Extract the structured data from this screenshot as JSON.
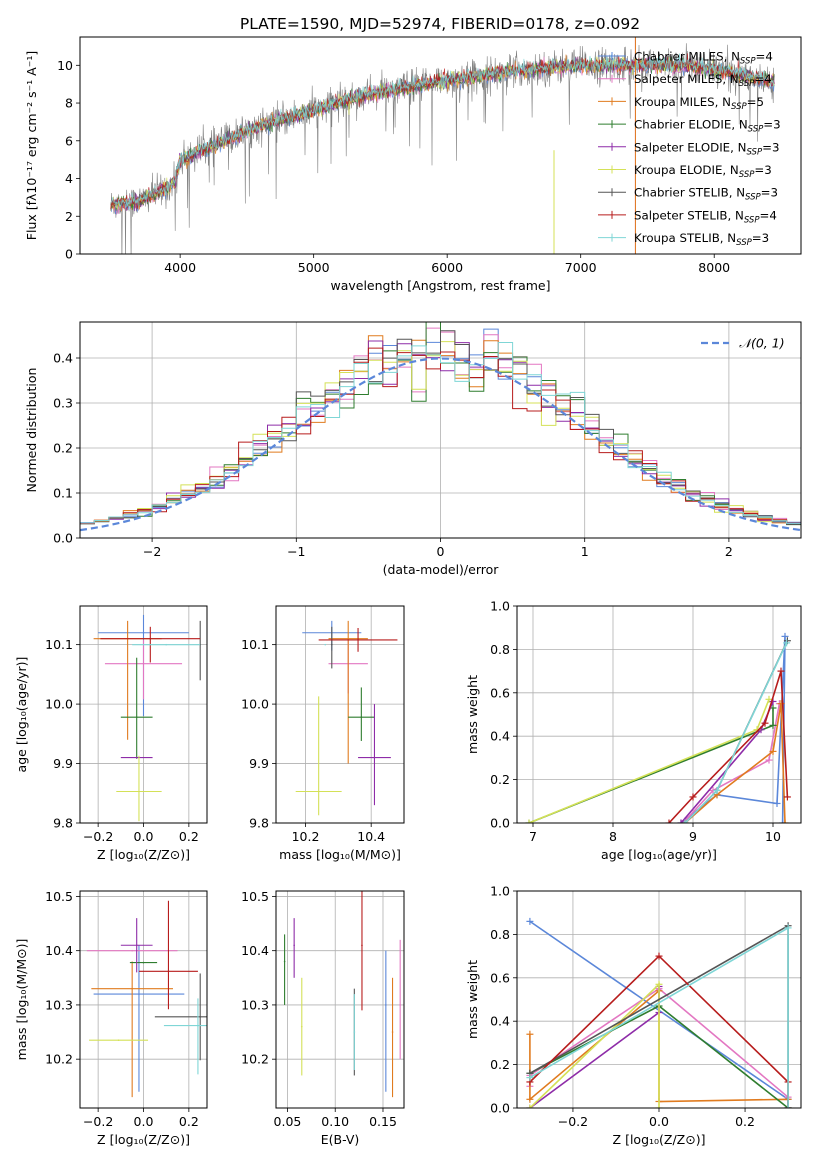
{
  "figure_title": "PLATE=1590, MJD=52974, FIBERID=0178, z=0.092",
  "palette": {
    "chabrier_miles": "#5b87d9",
    "salpeter_miles": "#e377c2",
    "kroupa_miles": "#e07b1f",
    "chabrier_elodie": "#2f7d2f",
    "salpeter_elodie": "#8e2ca8",
    "kroupa_elodie": "#d4e157",
    "chabrier_stelib": "#555555",
    "salpeter_stelib": "#b71c1c",
    "kroupa_stelib": "#7fd6d6",
    "data": "#808080",
    "gaussian": "#5b87d9"
  },
  "models": [
    {
      "key": "chabrier_miles",
      "label": "Chabrier MILES, N",
      "sub": "SSP",
      "n": "=4"
    },
    {
      "key": "salpeter_miles",
      "label": "Salpeter MILES, N",
      "sub": "SSP",
      "n": "=4"
    },
    {
      "key": "kroupa_miles",
      "label": "Kroupa MILES, N",
      "sub": "SSP",
      "n": "=5"
    },
    {
      "key": "chabrier_elodie",
      "label": "Chabrier ELODIE, N",
      "sub": "SSP",
      "n": "=3"
    },
    {
      "key": "salpeter_elodie",
      "label": "Salpeter ELODIE, N",
      "sub": "SSP",
      "n": "=3"
    },
    {
      "key": "kroupa_elodie",
      "label": "Kroupa ELODIE, N",
      "sub": "SSP",
      "n": "=3"
    },
    {
      "key": "chabrier_stelib",
      "label": "Chabrier STELIB, N",
      "sub": "SSP",
      "n": "=3"
    },
    {
      "key": "salpeter_stelib",
      "label": "Salpeter STELIB, N",
      "sub": "SSP",
      "n": "=4"
    },
    {
      "key": "kroupa_stelib",
      "label": "Kroupa STELIB, N",
      "sub": "SSP",
      "n": "=3"
    }
  ],
  "chart_data": [
    {
      "id": "spectrum",
      "type": "line",
      "xlabel": "wavelength [Angstrom, rest frame]",
      "ylabel": "Flux [fλ10⁻¹⁷ erg cm⁻² s⁻¹ A⁻¹]",
      "xlim": [
        3250,
        8650
      ],
      "ylim": [
        0,
        11.5
      ],
      "xticks": [
        4000,
        5000,
        6000,
        7000,
        8000
      ],
      "yticks": [
        0,
        2,
        4,
        6,
        8,
        10
      ],
      "legend_position": "right",
      "continuum_knots": {
        "x": [
          3480,
          3700,
          3900,
          3960,
          4000,
          4300,
          4600,
          5000,
          5300,
          5600,
          6000,
          6500,
          7000,
          7400,
          7800,
          8200,
          8450
        ],
        "y": [
          2.6,
          2.8,
          3.5,
          3.8,
          5.0,
          5.9,
          6.8,
          7.6,
          8.3,
          8.7,
          9.2,
          9.7,
          10.0,
          10.0,
          10.0,
          9.5,
          9.1
        ]
      },
      "data_noise_amplitude": 0.9,
      "spikes": [
        {
          "x": 6800,
          "y0": 0,
          "y1": 5.5,
          "series": "kroupa_elodie"
        },
        {
          "x": 7410,
          "y0": 0,
          "y1": 11.5,
          "series": "salpeter_miles"
        },
        {
          "x": 7410,
          "y0": 0,
          "y1": 11.5,
          "series": "kroupa_miles"
        }
      ]
    },
    {
      "id": "residuals",
      "type": "step",
      "xlabel": "(data-model)/error",
      "ylabel": "Normed distribution",
      "xlim": [
        -2.5,
        2.5
      ],
      "ylim": [
        0,
        0.48
      ],
      "xticks": [
        -2,
        -1,
        0,
        1,
        2
      ],
      "yticks": [
        0.0,
        0.1,
        0.2,
        0.3,
        0.4
      ],
      "grid": true,
      "bin_width": 0.1,
      "legend": {
        "label": "𝒩(0, 1)",
        "position": "top-right"
      }
    },
    {
      "id": "age_vs_Z",
      "type": "errorbar",
      "xlabel": "Z [log₁₀(Z/Z⊙)]",
      "ylabel": "age  [log₁₀(age/yr)]",
      "xlim": [
        -0.28,
        0.28
      ],
      "ylim": [
        9.8,
        10.165
      ],
      "xticks": [
        -0.2,
        0.0,
        0.2
      ],
      "yticks": [
        9.8,
        9.9,
        10.0,
        10.1
      ],
      "grid": true,
      "points": [
        {
          "series": "chabrier_miles",
          "x": 0.0,
          "xerr": 0.2,
          "y": 10.12,
          "yerr": [
            0.14,
            0.03
          ]
        },
        {
          "series": "salpeter_miles",
          "x": 0.0,
          "xerr": 0.17,
          "y": 10.068,
          "yerr": [
            0.06,
            0.04
          ]
        },
        {
          "series": "kroupa_miles",
          "x": -0.07,
          "xerr": 0.15,
          "y": 10.11,
          "yerr": [
            0.17,
            0.03
          ]
        },
        {
          "series": "chabrier_elodie",
          "x": -0.03,
          "xerr": 0.07,
          "y": 9.978,
          "yerr": [
            0.07,
            0.1
          ]
        },
        {
          "series": "salpeter_elodie",
          "x": -0.03,
          "xerr": 0.07,
          "y": 9.91,
          "yerr": [
            0.0,
            0.0
          ]
        },
        {
          "series": "kroupa_elodie",
          "x": -0.02,
          "xerr": 0.1,
          "y": 9.853,
          "yerr": [
            0.05,
            0.06
          ]
        },
        {
          "series": "chabrier_stelib",
          "x": 0.25,
          "xerr": 0.0,
          "y": 10.1,
          "yerr": [
            0.06,
            0.04
          ]
        },
        {
          "series": "salpeter_stelib",
          "x": 0.03,
          "xerr": 0.22,
          "y": 10.11,
          "yerr": [
            0.04,
            0.02
          ]
        },
        {
          "series": "kroupa_stelib",
          "x": 0.1,
          "xerr": 0.15,
          "y": 10.1,
          "yerr": [
            0.0,
            0.0
          ]
        }
      ]
    },
    {
      "id": "age_vs_mass",
      "type": "errorbar",
      "xlabel": "mass [log₁₀(M/M⊙)]",
      "ylabel": "",
      "xlim": [
        10.11,
        10.5
      ],
      "ylim": [
        9.8,
        10.165
      ],
      "xticks": [
        10.2,
        10.4
      ],
      "yticks": [
        9.8,
        9.9,
        10.0,
        10.1
      ],
      "grid": true,
      "points": [
        {
          "series": "chabrier_miles",
          "x": 10.28,
          "xerr": 0.09,
          "y": 10.12,
          "yerr": [
            0.03,
            0.02
          ]
        },
        {
          "series": "salpeter_miles",
          "x": 10.33,
          "xerr": 0.06,
          "y": 10.068,
          "yerr": [
            0.05,
            0.04
          ]
        },
        {
          "series": "kroupa_miles",
          "x": 10.33,
          "xerr": 0.06,
          "y": 10.11,
          "yerr": [
            0.21,
            0.03
          ]
        },
        {
          "series": "chabrier_elodie",
          "x": 10.37,
          "xerr": 0.04,
          "y": 9.978,
          "yerr": [
            0.04,
            0.05
          ]
        },
        {
          "series": "salpeter_elodie",
          "x": 10.41,
          "xerr": 0.05,
          "y": 9.91,
          "yerr": [
            0.08,
            0.09
          ]
        },
        {
          "series": "kroupa_elodie",
          "x": 10.24,
          "xerr": 0.07,
          "y": 9.853,
          "yerr": [
            0.04,
            0.16
          ]
        },
        {
          "series": "chabrier_stelib",
          "x": 10.28,
          "xerr": 0.0,
          "y": 10.1,
          "yerr": [
            0.04,
            0.03
          ]
        },
        {
          "series": "salpeter_stelib",
          "x": 10.36,
          "xerr": 0.12,
          "y": 10.108,
          "yerr": [
            0.02,
            0.02
          ]
        },
        {
          "series": "kroupa_stelib",
          "x": 10.26,
          "xerr": 0.0,
          "y": 10.1,
          "yerr": [
            0.0,
            0.0
          ]
        }
      ]
    },
    {
      "id": "mass_weight_vs_age",
      "type": "line",
      "xlabel": "age  [log₁₀(age/yr)]",
      "ylabel": "mass weight",
      "xlim": [
        6.8,
        10.35
      ],
      "ylim": [
        0,
        1.0
      ],
      "xticks": [
        7,
        8,
        9,
        10
      ],
      "yticks": [
        0.0,
        0.2,
        0.4,
        0.6,
        0.8,
        1.0
      ],
      "grid": true,
      "series": [
        {
          "series": "chabrier_miles",
          "x": [
            8.85,
            9.3,
            10.05,
            10.15,
            10.12
          ],
          "y": [
            0.0,
            0.13,
            0.09,
            0.86,
            0.0
          ]
        },
        {
          "series": "salpeter_miles",
          "x": [
            8.9,
            9.25,
            9.95,
            10.08
          ],
          "y": [
            0.01,
            0.15,
            0.29,
            0.55
          ]
        },
        {
          "series": "kroupa_miles",
          "x": [
            8.9,
            9.3,
            10.0,
            10.1,
            10.15
          ],
          "y": [
            0.0,
            0.13,
            0.33,
            0.55,
            0.0
          ]
        },
        {
          "series": "chabrier_elodie",
          "x": [
            6.95,
            10.0,
            10.0
          ],
          "y": [
            0.0,
            0.45,
            0.53
          ]
        },
        {
          "series": "salpeter_elodie",
          "x": [
            8.85,
            9.85,
            10.0
          ],
          "y": [
            0.0,
            0.43,
            0.56
          ]
        },
        {
          "series": "kroupa_elodie",
          "x": [
            6.95,
            9.8,
            9.95
          ],
          "y": [
            0.0,
            0.43,
            0.57
          ]
        },
        {
          "series": "chabrier_stelib",
          "x": [
            8.9,
            9.3,
            10.18
          ],
          "y": [
            0.0,
            0.15,
            0.84
          ]
        },
        {
          "series": "salpeter_stelib",
          "x": [
            8.7,
            9.0,
            9.9,
            10.1,
            10.18
          ],
          "y": [
            0.0,
            0.12,
            0.46,
            0.7,
            0.12
          ]
        },
        {
          "series": "kroupa_stelib",
          "x": [
            8.9,
            9.3,
            10.17
          ],
          "y": [
            0.0,
            0.15,
            0.83
          ]
        }
      ]
    },
    {
      "id": "mass_vs_Z",
      "type": "errorbar",
      "xlabel": "Z [log₁₀(Z/Z⊙)]",
      "ylabel": "mass [log₁₀(M/M⊙)]",
      "xlim": [
        -0.28,
        0.28
      ],
      "ylim": [
        10.11,
        10.51
      ],
      "xticks": [
        -0.2,
        0.0,
        0.2
      ],
      "yticks": [
        10.2,
        10.3,
        10.4,
        10.5
      ],
      "grid": true,
      "points": [
        {
          "series": "chabrier_miles",
          "x": -0.02,
          "xerr": 0.2,
          "y": 10.32,
          "yerr": [
            0.18,
            0.09
          ]
        },
        {
          "series": "salpeter_miles",
          "x": -0.05,
          "xerr": 0.2,
          "y": 10.4,
          "yerr": [
            0.0,
            0.0
          ]
        },
        {
          "series": "kroupa_miles",
          "x": -0.05,
          "xerr": 0.18,
          "y": 10.33,
          "yerr": [
            0.2,
            0.05
          ]
        },
        {
          "series": "chabrier_elodie",
          "x": 0.0,
          "xerr": 0.06,
          "y": 10.378,
          "yerr": [
            0.0,
            0.0
          ]
        },
        {
          "series": "salpeter_elodie",
          "x": -0.03,
          "xerr": 0.07,
          "y": 10.41,
          "yerr": [
            0.05,
            0.05
          ]
        },
        {
          "series": "kroupa_elodie",
          "x": -0.11,
          "xerr": 0.13,
          "y": 10.235,
          "yerr": [
            0.0,
            0.0
          ]
        },
        {
          "series": "chabrier_stelib",
          "x": 0.25,
          "xerr": 0.2,
          "y": 10.278,
          "yerr": [
            0.08,
            0.08
          ]
        },
        {
          "series": "salpeter_stelib",
          "x": 0.11,
          "xerr": 0.13,
          "y": 10.362,
          "yerr": [
            0.07,
            0.13
          ]
        },
        {
          "series": "kroupa_stelib",
          "x": 0.24,
          "xerr": 0.15,
          "y": 10.262,
          "yerr": [
            0.09,
            0.05
          ]
        }
      ]
    },
    {
      "id": "mass_vs_ebv",
      "type": "errorbar",
      "xlabel": "E(B-V)",
      "ylabel": "",
      "xlim": [
        0.038,
        0.172
      ],
      "ylim": [
        10.11,
        10.51
      ],
      "xticks": [
        0.05,
        0.1,
        0.15
      ],
      "yticks": [
        10.2,
        10.3,
        10.4,
        10.5
      ],
      "grid": true,
      "points": [
        {
          "series": "chabrier_miles",
          "x": 0.153,
          "xerr": 0.0,
          "y": 10.3,
          "yerr": [
            0.16,
            0.1
          ]
        },
        {
          "series": "salpeter_miles",
          "x": 0.168,
          "xerr": 0.0,
          "y": 10.3,
          "yerr": [
            0.1,
            0.12
          ]
        },
        {
          "series": "kroupa_miles",
          "x": 0.16,
          "xerr": 0.0,
          "y": 10.25,
          "yerr": [
            0.12,
            0.1
          ]
        },
        {
          "series": "chabrier_elodie",
          "x": 0.047,
          "xerr": 0.0,
          "y": 10.38,
          "yerr": [
            0.08,
            0.05
          ]
        },
        {
          "series": "salpeter_elodie",
          "x": 0.057,
          "xerr": 0.0,
          "y": 10.41,
          "yerr": [
            0.06,
            0.05
          ]
        },
        {
          "series": "kroupa_elodie",
          "x": 0.065,
          "xerr": 0.0,
          "y": 10.26,
          "yerr": [
            0.09,
            0.09
          ]
        },
        {
          "series": "chabrier_stelib",
          "x": 0.12,
          "xerr": 0.0,
          "y": 10.25,
          "yerr": [
            0.08,
            0.08
          ]
        },
        {
          "series": "salpeter_stelib",
          "x": 0.128,
          "xerr": 0.0,
          "y": 10.41,
          "yerr": [
            0.12,
            0.1
          ]
        },
        {
          "series": "kroupa_stelib",
          "x": 0.12,
          "xerr": 0.0,
          "y": 10.25,
          "yerr": [
            0.07,
            0.07
          ]
        }
      ]
    },
    {
      "id": "mass_weight_vs_Z",
      "type": "line",
      "xlabel": "Z [log₁₀(Z/Z⊙)]",
      "ylabel": "mass weight",
      "xlim": [
        -0.33,
        0.33
      ],
      "ylim": [
        0,
        1.0
      ],
      "xticks": [
        -0.2,
        0.0,
        0.2
      ],
      "yticks": [
        0.0,
        0.2,
        0.4,
        0.6,
        0.8,
        1.0
      ],
      "grid": true,
      "series": [
        {
          "series": "chabrier_miles",
          "x": [
            -0.3,
            0.3,
            0.3
          ],
          "y": [
            0.86,
            0.04,
            0.0
          ]
        },
        {
          "series": "salpeter_miles",
          "x": [
            -0.3,
            -0.3,
            0.0,
            0.3
          ],
          "y": [
            0.1,
            0.15,
            0.55,
            0.05
          ]
        },
        {
          "series": "kroupa_miles",
          "x": [
            -0.3,
            -0.3,
            0.0,
            0.0,
            0.3,
            0.3
          ],
          "y": [
            0.34,
            0.04,
            0.54,
            0.03,
            0.04,
            0.0
          ]
        },
        {
          "series": "chabrier_elodie",
          "x": [
            -0.3,
            0.0,
            0.3
          ],
          "y": [
            0.16,
            0.47,
            0.0
          ]
        },
        {
          "series": "salpeter_elodie",
          "x": [
            -0.3,
            0.0,
            0.0
          ],
          "y": [
            0.0,
            0.44,
            0.56
          ]
        },
        {
          "series": "kroupa_elodie",
          "x": [
            -0.3,
            0.0,
            0.0
          ],
          "y": [
            0.0,
            0.57,
            0.0
          ]
        },
        {
          "series": "chabrier_stelib",
          "x": [
            -0.3,
            0.3,
            0.3
          ],
          "y": [
            0.16,
            0.84,
            0.0
          ]
        },
        {
          "series": "salpeter_stelib",
          "x": [
            -0.3,
            0.0,
            0.3,
            0.3
          ],
          "y": [
            0.12,
            0.7,
            0.12,
            0.0
          ]
        },
        {
          "series": "kroupa_stelib",
          "x": [
            -0.3,
            0.3,
            0.3
          ],
          "y": [
            0.14,
            0.83,
            0.0
          ]
        }
      ]
    }
  ]
}
